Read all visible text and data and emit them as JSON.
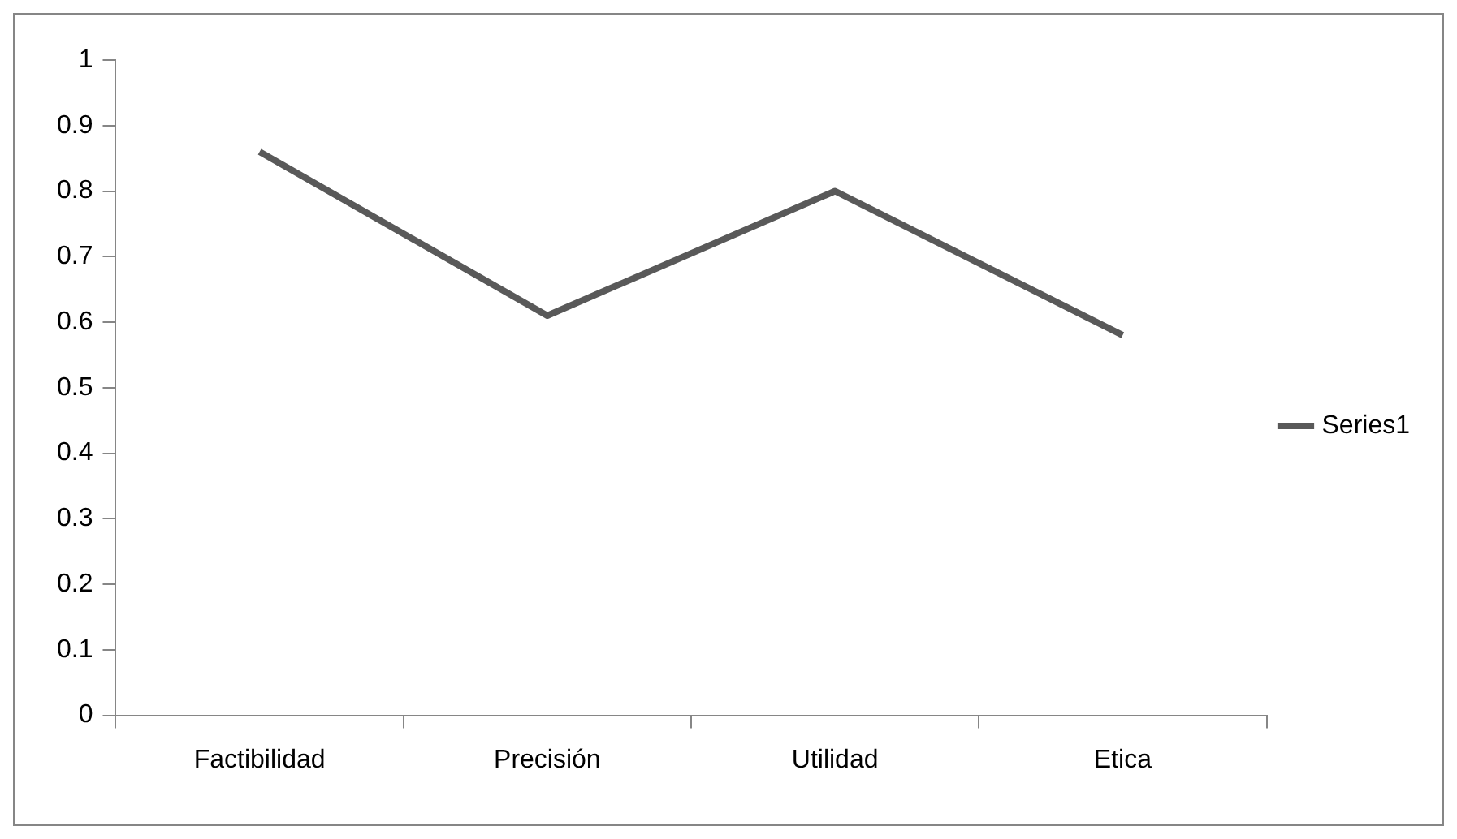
{
  "chart_data": {
    "type": "line",
    "categories": [
      "Factibilidad",
      "Precisión",
      "Utilidad",
      "Etica"
    ],
    "series": [
      {
        "name": "Series1",
        "color": "#595959",
        "values": [
          0.86,
          0.61,
          0.8,
          0.58
        ]
      }
    ],
    "ylim": [
      0,
      1
    ],
    "yticks": [
      0,
      0.1,
      0.2,
      0.3,
      0.4,
      0.5,
      0.6,
      0.7,
      0.8,
      0.9,
      1
    ],
    "grid": false,
    "legend": "right",
    "marker": "none"
  }
}
